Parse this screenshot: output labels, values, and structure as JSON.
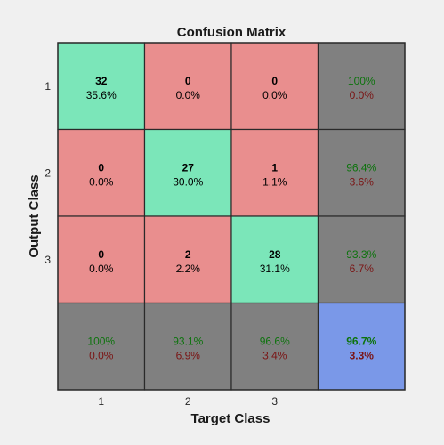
{
  "chart_data": {
    "type": "heatmap",
    "title": "Confusion Matrix",
    "xlabel": "Target Class",
    "ylabel": "Output Class",
    "x_tick_labels": [
      "1",
      "2",
      "3"
    ],
    "y_tick_labels": [
      "1",
      "2",
      "3"
    ],
    "matrix": [
      [
        {
          "count": "32",
          "pct": "35.6%"
        },
        {
          "count": "0",
          "pct": "0.0%"
        },
        {
          "count": "0",
          "pct": "0.0%"
        }
      ],
      [
        {
          "count": "0",
          "pct": "0.0%"
        },
        {
          "count": "27",
          "pct": "30.0%"
        },
        {
          "count": "1",
          "pct": "1.1%"
        }
      ],
      [
        {
          "count": "0",
          "pct": "0.0%"
        },
        {
          "count": "2",
          "pct": "2.2%"
        },
        {
          "count": "28",
          "pct": "31.1%"
        }
      ]
    ],
    "row_summary": [
      {
        "correct": "100%",
        "error": "0.0%"
      },
      {
        "correct": "96.4%",
        "error": "3.6%"
      },
      {
        "correct": "93.3%",
        "error": "6.7%"
      }
    ],
    "col_summary": [
      {
        "correct": "100%",
        "error": "0.0%"
      },
      {
        "correct": "93.1%",
        "error": "6.9%"
      },
      {
        "correct": "96.6%",
        "error": "3.4%"
      }
    ],
    "overall": {
      "correct": "96.7%",
      "error": "3.3%"
    },
    "colors": {
      "diagonal": "#7be6b9",
      "offdiagonal": "#e98e8e",
      "summary": "#808080",
      "overall": "#7a98e8",
      "correct_text": "#0d730d",
      "error_text": "#7a1414",
      "background": "#f0f0f0"
    }
  }
}
